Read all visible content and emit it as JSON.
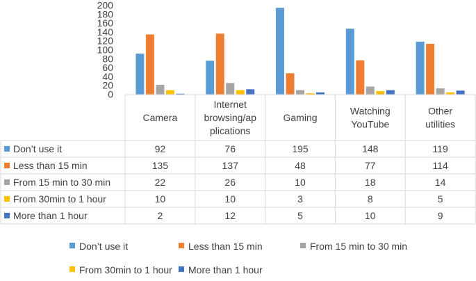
{
  "chart_data": {
    "type": "bar",
    "categories": [
      "Camera",
      "Internet browsing/applications",
      "Gaming",
      "Watching YouTube",
      "Other utilities"
    ],
    "category_display_lines": [
      [
        "Camera"
      ],
      [
        "Internet",
        "browsing/ap",
        "plications"
      ],
      [
        "Gaming"
      ],
      [
        "Watching",
        "YouTube"
      ],
      [
        "Other",
        "utilities"
      ]
    ],
    "series": [
      {
        "name": "Don’t use it",
        "color": "#5B9BD5",
        "values": [
          92,
          76,
          195,
          148,
          119
        ]
      },
      {
        "name": "Less than 15 min",
        "color": "#ED7D31",
        "values": [
          135,
          137,
          48,
          77,
          114
        ]
      },
      {
        "name": "From 15 min to 30 min",
        "color": "#A5A5A5",
        "values": [
          22,
          26,
          10,
          18,
          14
        ]
      },
      {
        "name": "From 30min to 1 hour",
        "color": "#FFC000",
        "values": [
          10,
          10,
          3,
          8,
          5
        ]
      },
      {
        "name": "More than 1 hour",
        "color": "#4472C4",
        "values": [
          2,
          12,
          5,
          10,
          9
        ]
      }
    ],
    "yticks": [
      0,
      20,
      40,
      60,
      80,
      100,
      120,
      140,
      160,
      180,
      200
    ],
    "ylim": [
      0,
      200
    ],
    "grid": false,
    "data_table": true,
    "legend_position": "bottom"
  }
}
